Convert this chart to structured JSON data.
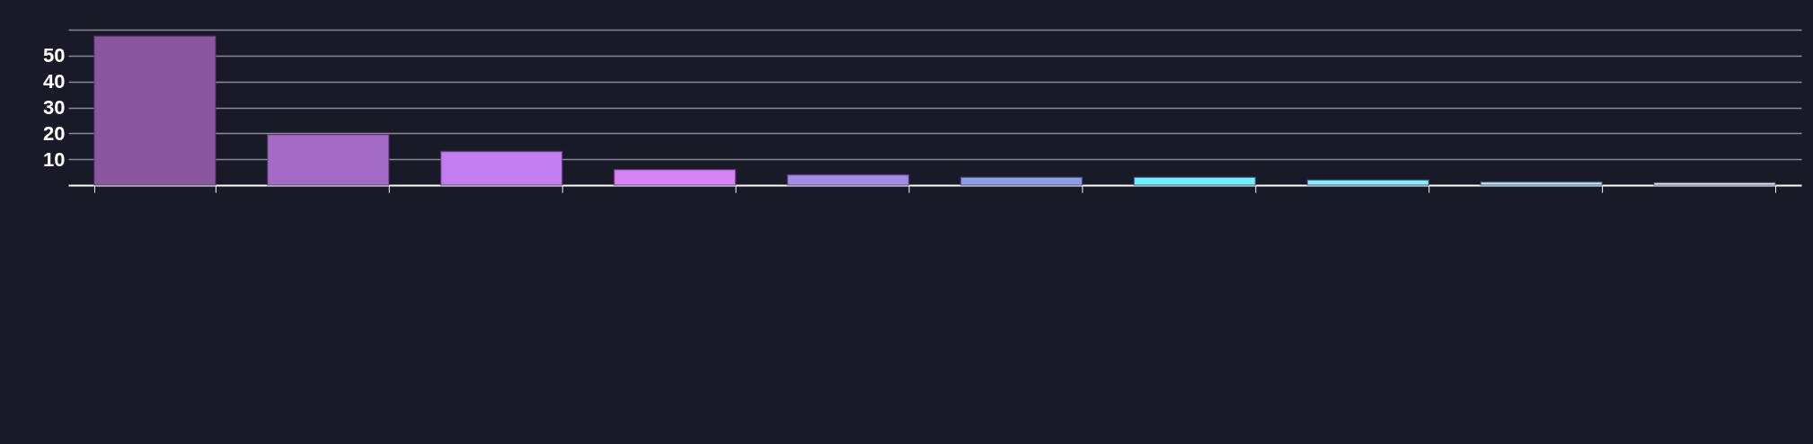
{
  "chart_data": {
    "type": "bar",
    "categories": [
      null,
      null,
      null,
      null,
      null,
      null,
      null,
      null,
      null,
      null
    ],
    "values": [
      57.5,
      19.5,
      13,
      6,
      4,
      3,
      3,
      2,
      1.2,
      1
    ],
    "colors": [
      "#8a56a0",
      "#a46bc6",
      "#c27df0",
      "#d583f5",
      "#a58ae8",
      "#8aa0e6",
      "#6cf4fd",
      "#7af0f8",
      "#9ef5f5",
      "#e8f2f5"
    ],
    "ylim": [
      0,
      60
    ],
    "yticks": [
      10,
      20,
      30,
      40,
      50,
      {
        "value": 60,
        "label": null
      }
    ],
    "tick_labels": "y",
    "grid": "y"
  }
}
